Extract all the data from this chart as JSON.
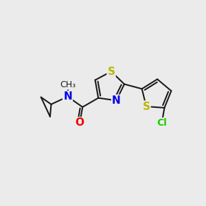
{
  "bg_color": "#ebebeb",
  "bond_color": "#1a1a1a",
  "bond_width": 1.5,
  "atom_colors": {
    "S": "#b8b800",
    "N": "#0000ee",
    "O": "#ee0000",
    "Cl": "#22cc00",
    "C": "#1a1a1a"
  },
  "font_size": 10,
  "fig_size": [
    3.0,
    3.0
  ],
  "dpi": 100
}
